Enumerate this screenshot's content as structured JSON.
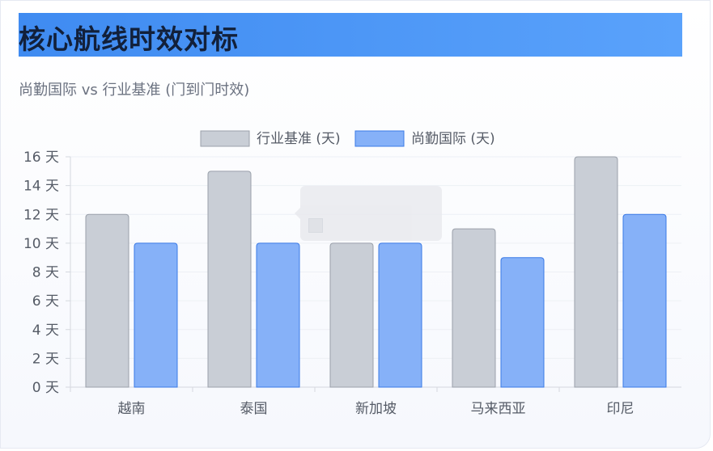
{
  "header": {
    "title": "核心航线时效对标",
    "subtitle": "尚勤国际 vs 行业基准 (门到门时效)"
  },
  "colors": {
    "baseline_fill": "#c9ced6",
    "baseline_stroke": "#9aa0aa",
    "company_fill": "#86b1f8",
    "company_stroke": "#3b7ae6",
    "grid": "#edf0f5",
    "axis_text": "#555b66"
  },
  "chart_data": {
    "type": "bar",
    "title": "",
    "categories": [
      "越南",
      "泰国",
      "新加坡",
      "马来西亚",
      "印尼"
    ],
    "series": [
      {
        "name": "行业基准 (天)",
        "values": [
          12,
          15,
          10,
          11,
          16
        ]
      },
      {
        "name": "尚勤国际 (天)",
        "values": [
          10,
          10,
          10,
          9,
          12
        ]
      }
    ],
    "ylim": [
      0,
      16
    ],
    "yticks": [
      0,
      2,
      4,
      6,
      8,
      10,
      12,
      14,
      16
    ],
    "ytick_suffix": " 天",
    "grid": true,
    "legend": "top-center",
    "xlabel": "",
    "ylabel": ""
  }
}
